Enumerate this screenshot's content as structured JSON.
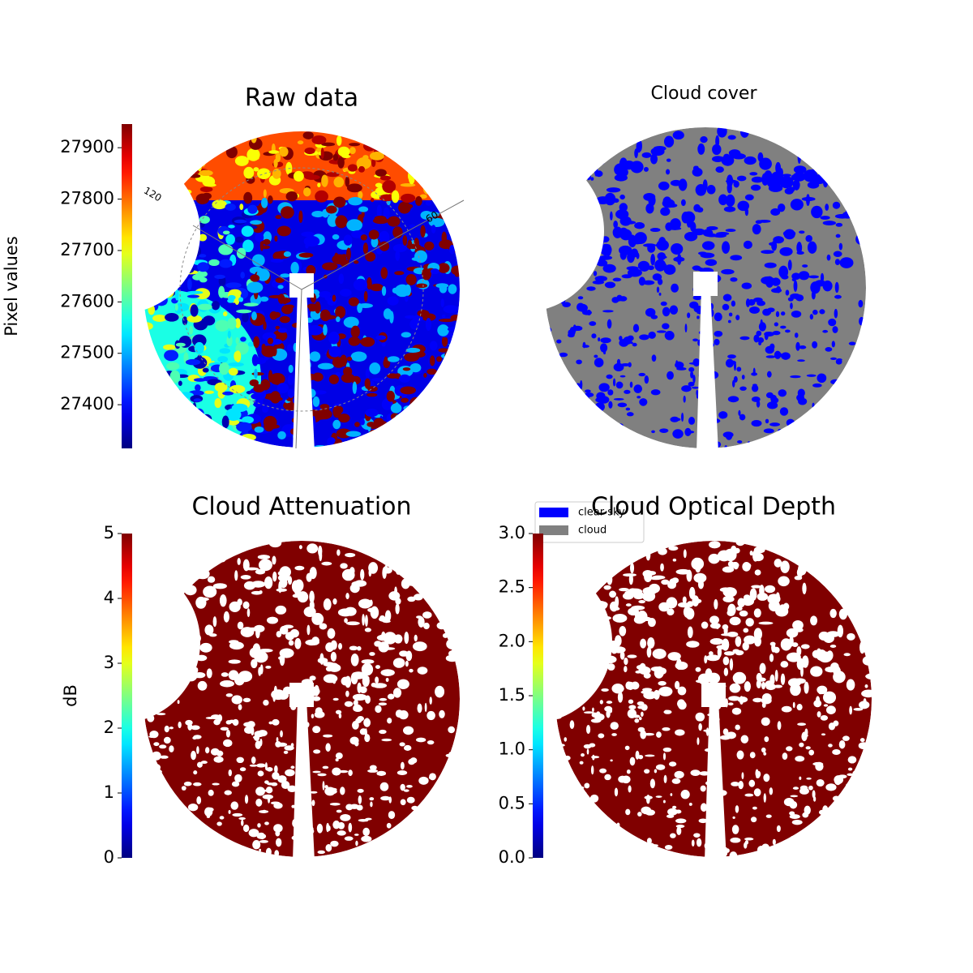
{
  "chart_data": [
    {
      "type": "image",
      "title": "Raw data",
      "colorbar": {
        "label": "Pixel values",
        "colormap": "jet",
        "lim": [
          27315,
          27946
        ],
        "ticks": [
          27400,
          27500,
          27600,
          27700,
          27800,
          27900
        ]
      },
      "annotations": [
        "120",
        "60"
      ]
    },
    {
      "type": "image",
      "title": "Cloud cover",
      "legend": [
        {
          "name": "clear sky",
          "color": "#0000ff"
        },
        {
          "name": "cloud",
          "color": "#808080"
        }
      ]
    },
    {
      "type": "image",
      "title": "Cloud Attenuation",
      "colorbar": {
        "label": "dB",
        "colormap": "jet",
        "lim": [
          0,
          5
        ],
        "ticks": [
          0,
          1,
          2,
          3,
          4,
          5
        ]
      }
    },
    {
      "type": "image",
      "title": "Cloud Optical Depth",
      "colorbar": {
        "colormap": "jet",
        "lim": [
          0,
          3
        ],
        "ticks": [
          {
            "value": 0,
            "label": "0.0"
          },
          {
            "value": 0.5,
            "label": "0.5"
          },
          {
            "value": 1,
            "label": "1.0"
          },
          {
            "value": 1.5,
            "label": "1.5"
          },
          {
            "value": 2,
            "label": "2.0"
          },
          {
            "value": 2.5,
            "label": "2.5"
          },
          {
            "value": 3,
            "label": "3.0"
          }
        ]
      }
    }
  ]
}
